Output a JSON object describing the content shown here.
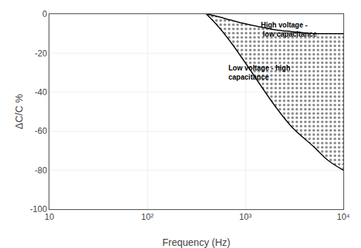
{
  "chart_data": {
    "type": "area",
    "xlabel": "Frequency (Hz)",
    "ylabel": "ΔC/C %",
    "log": "x",
    "grid": true,
    "x": [
      400,
      500,
      700,
      1000,
      2000,
      3000,
      5000,
      7000,
      10000
    ],
    "series": [
      {
        "color": "#000000",
        "values": [
          0,
          -1,
          -3,
          -5,
          -8,
          -9,
          -10,
          -10,
          -10
        ]
      },
      {
        "color": "#000000",
        "values": [
          0,
          -5,
          -14,
          -25,
          -47,
          -58,
          -68,
          -75,
          -80
        ]
      }
    ],
    "xlim": [
      10,
      10000
    ],
    "xticks": [
      10,
      {
        "value": 100,
        "label": "10²"
      },
      {
        "value": 1000,
        "label": "10³"
      },
      {
        "value": 10000,
        "label": "10⁴"
      }
    ],
    "ylim": [
      -100,
      0
    ],
    "yticks": [
      0,
      -20,
      -40,
      -60,
      -80,
      -100
    ],
    "annotations": [
      {
        "text": "High voltage -\n low capacitance",
        "x": 1400,
        "y": -8
      },
      {
        "text": "Low voltage - high\ncapacitance",
        "x": 650,
        "y": -30
      }
    ]
  }
}
